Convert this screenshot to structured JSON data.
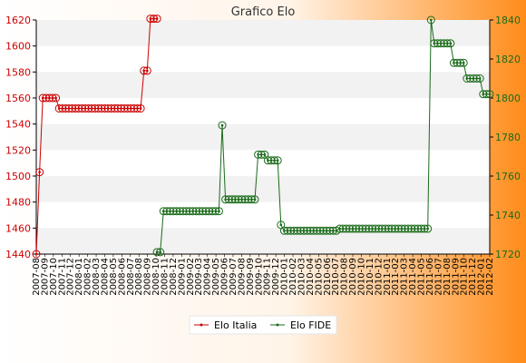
{
  "colors": {
    "background_start": "#ffffff",
    "background_end": "#ff8c1a",
    "band": "#f2f2f2",
    "plot_bg": "#ffffff",
    "italia": "#cc0000",
    "fide": "#1a6b1a",
    "title": "#333333",
    "left_axis_text": "#cc0000",
    "right_axis_text": "#1a6b1a"
  },
  "chart_data": {
    "type": "line",
    "title": "Grafico Elo",
    "x_index_range": [
      0,
      100
    ],
    "y_left": {
      "min": 1440,
      "max": 1620,
      "ticks": [
        1440,
        1460,
        1480,
        1500,
        1520,
        1540,
        1560,
        1580,
        1600,
        1620
      ]
    },
    "y_right": {
      "min": 1720,
      "max": 1840,
      "ticks": [
        1720,
        1740,
        1760,
        1780,
        1800,
        1820,
        1840
      ]
    },
    "x_tick_labels_note": "x-axis labels are dates rendered vertically and heavily overlapping; individual dates are not legible",
    "x_tick_labels": [
      "2007-08",
      "2007-09",
      "2007-10",
      "2007-11",
      "2007-12",
      "2008-01",
      "2008-02",
      "2008-03",
      "2008-04",
      "2008-05",
      "2008-06",
      "2008-07",
      "2008-08",
      "2008-09",
      "2008-10",
      "2008-11",
      "2008-12",
      "2009-01",
      "2009-02",
      "2009-03",
      "2009-04",
      "2009-05",
      "2009-06",
      "2009-07",
      "2009-08",
      "2009-09",
      "2009-10",
      "2009-11",
      "2009-12",
      "2010-01",
      "2010-02",
      "2010-03",
      "2010-04",
      "2010-05",
      "2010-06",
      "2010-07",
      "2010-08",
      "2010-09",
      "2010-10",
      "2010-11",
      "2010-12",
      "2011-01",
      "2011-02",
      "2011-03",
      "2011-04",
      "2011-05",
      "2011-06",
      "2011-07",
      "2011-08",
      "2011-09",
      "2011-10",
      "2011-12",
      "2012-01",
      "2012-02"
    ],
    "series": [
      {
        "name": "Elo Italia",
        "axis": "left",
        "points": [
          [
            0,
            1440
          ],
          [
            1,
            1503
          ],
          [
            2,
            1560
          ],
          [
            3,
            1560
          ],
          [
            4,
            1560
          ],
          [
            5,
            1560
          ],
          [
            6,
            1560
          ],
          [
            7,
            1552
          ],
          [
            8,
            1552
          ],
          [
            9,
            1552
          ],
          [
            10,
            1552
          ],
          [
            11,
            1552
          ],
          [
            12,
            1552
          ],
          [
            13,
            1552
          ],
          [
            14,
            1552
          ],
          [
            15,
            1552
          ],
          [
            16,
            1552
          ],
          [
            17,
            1552
          ],
          [
            18,
            1552
          ],
          [
            19,
            1552
          ],
          [
            20,
            1552
          ],
          [
            21,
            1552
          ],
          [
            22,
            1552
          ],
          [
            23,
            1552
          ],
          [
            24,
            1552
          ],
          [
            25,
            1552
          ],
          [
            26,
            1552
          ],
          [
            27,
            1552
          ],
          [
            28,
            1552
          ],
          [
            29,
            1552
          ],
          [
            30,
            1552
          ],
          [
            31,
            1552
          ],
          [
            32,
            1552
          ],
          [
            33,
            1581
          ],
          [
            34,
            1581
          ],
          [
            35,
            1621
          ],
          [
            36,
            1621
          ],
          [
            37,
            1621
          ]
        ]
      },
      {
        "name": "Elo FIDE",
        "axis": "right",
        "points": [
          [
            37,
            1721
          ],
          [
            38,
            1721
          ],
          [
            39,
            1742
          ],
          [
            40,
            1742
          ],
          [
            41,
            1742
          ],
          [
            42,
            1742
          ],
          [
            43,
            1742
          ],
          [
            44,
            1742
          ],
          [
            45,
            1742
          ],
          [
            46,
            1742
          ],
          [
            47,
            1742
          ],
          [
            48,
            1742
          ],
          [
            49,
            1742
          ],
          [
            50,
            1742
          ],
          [
            51,
            1742
          ],
          [
            52,
            1742
          ],
          [
            53,
            1742
          ],
          [
            54,
            1742
          ],
          [
            55,
            1742
          ],
          [
            56,
            1742
          ],
          [
            57,
            1786
          ],
          [
            58,
            1748
          ],
          [
            59,
            1748
          ],
          [
            60,
            1748
          ],
          [
            61,
            1748
          ],
          [
            62,
            1748
          ],
          [
            63,
            1748
          ],
          [
            64,
            1748
          ],
          [
            65,
            1748
          ],
          [
            66,
            1748
          ],
          [
            67,
            1748
          ],
          [
            68,
            1771
          ],
          [
            69,
            1771
          ],
          [
            70,
            1771
          ],
          [
            71,
            1768
          ],
          [
            72,
            1768
          ],
          [
            73,
            1768
          ],
          [
            74,
            1768
          ],
          [
            75,
            1735
          ],
          [
            76,
            1732
          ],
          [
            77,
            1732
          ],
          [
            78,
            1732
          ],
          [
            79,
            1732
          ],
          [
            80,
            1732
          ],
          [
            81,
            1732
          ],
          [
            82,
            1732
          ],
          [
            83,
            1732
          ],
          [
            84,
            1732
          ],
          [
            85,
            1732
          ],
          [
            86,
            1732
          ],
          [
            87,
            1732
          ],
          [
            88,
            1732
          ],
          [
            89,
            1732
          ],
          [
            90,
            1732
          ],
          [
            91,
            1732
          ],
          [
            92,
            1732
          ],
          [
            93,
            1733
          ],
          [
            94,
            1733
          ],
          [
            95,
            1733
          ],
          [
            96,
            1733
          ],
          [
            97,
            1733
          ],
          [
            98,
            1733
          ],
          [
            99,
            1733
          ],
          [
            100,
            1733
          ],
          [
            101,
            1733
          ],
          [
            102,
            1733
          ],
          [
            103,
            1733
          ],
          [
            104,
            1733
          ],
          [
            105,
            1733
          ],
          [
            106,
            1733
          ],
          [
            107,
            1733
          ],
          [
            108,
            1733
          ],
          [
            109,
            1733
          ],
          [
            110,
            1733
          ],
          [
            111,
            1733
          ],
          [
            112,
            1733
          ],
          [
            113,
            1733
          ],
          [
            114,
            1733
          ],
          [
            115,
            1733
          ],
          [
            116,
            1733
          ],
          [
            117,
            1733
          ],
          [
            118,
            1733
          ],
          [
            119,
            1733
          ],
          [
            120,
            1733
          ],
          [
            121,
            1840
          ],
          [
            122,
            1828
          ],
          [
            123,
            1828
          ],
          [
            124,
            1828
          ],
          [
            125,
            1828
          ],
          [
            126,
            1828
          ],
          [
            127,
            1828
          ],
          [
            128,
            1818
          ],
          [
            129,
            1818
          ],
          [
            130,
            1818
          ],
          [
            131,
            1818
          ],
          [
            132,
            1810
          ],
          [
            133,
            1810
          ],
          [
            134,
            1810
          ],
          [
            135,
            1810
          ],
          [
            136,
            1810
          ],
          [
            137,
            1802
          ],
          [
            138,
            1802
          ],
          [
            139,
            1802
          ]
        ]
      }
    ],
    "grid": "horizontal-bands",
    "legend": {
      "position": "bottom-center",
      "entries": [
        "Elo Italia",
        "Elo FIDE"
      ]
    }
  }
}
